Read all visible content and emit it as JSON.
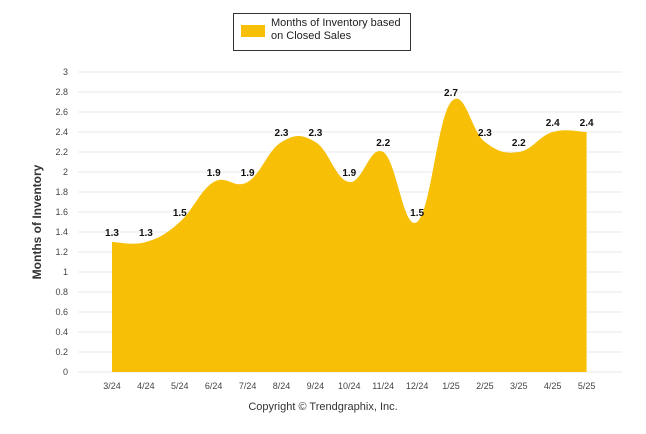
{
  "chart_data": {
    "type": "area",
    "categories": [
      "3/24",
      "4/24",
      "5/24",
      "6/24",
      "7/24",
      "8/24",
      "9/24",
      "10/24",
      "11/24",
      "12/24",
      "1/25",
      "2/25",
      "3/25",
      "4/25",
      "5/25"
    ],
    "series": [
      {
        "name": "Months of Inventory based on Closed Sales",
        "values": [
          1.3,
          1.3,
          1.5,
          1.9,
          1.9,
          2.3,
          2.3,
          1.9,
          2.2,
          1.5,
          2.7,
          2.3,
          2.2,
          2.4,
          2.4
        ],
        "color": "#F7C006"
      }
    ],
    "y_ticks": [
      "0",
      "0.2",
      "0.4",
      "0.6",
      "0.8",
      "1",
      "1.2",
      "1.4",
      "1.6",
      "1.8",
      "2",
      "2.2",
      "2.4",
      "2.6",
      "2.8",
      "3"
    ],
    "ylim": [
      0,
      3
    ],
    "ylabel": "Months of Inventory",
    "xlabel": "",
    "grid": true,
    "legend": "top-center"
  },
  "legend": {
    "label_line1": "Months of Inventory based",
    "label_line2": "on Closed Sales"
  },
  "footer": {
    "copyright": "Copyright © Trendgraphix, Inc."
  },
  "colors": {
    "grid": "#e8e8e8",
    "area": "#F7C006"
  }
}
